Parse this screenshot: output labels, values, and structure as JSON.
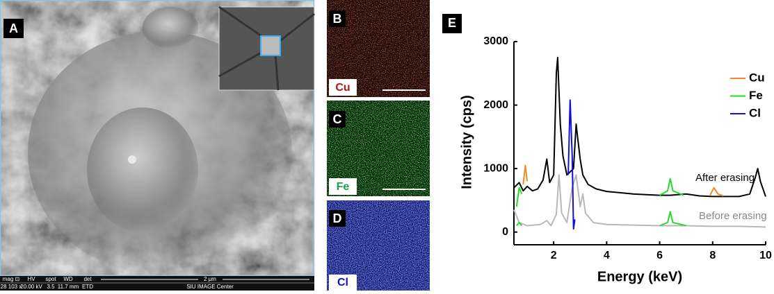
{
  "panels": {
    "A": {
      "label": "A",
      "info_bar": {
        "headers": [
          "mag ⊡",
          "HV",
          "spot",
          "WD",
          "det"
        ],
        "values": [
          "28 103 x",
          "20.00 kV",
          "3.5",
          "11.7 mm",
          "ETD"
        ],
        "scale": "2 μm",
        "center": "SIU IMAGE Center"
      }
    },
    "B": {
      "label": "B",
      "element": "Cu"
    },
    "C": {
      "label": "C",
      "element": "Fe"
    },
    "D": {
      "label": "D",
      "element": "Cl"
    }
  },
  "chart_data": {
    "type": "line",
    "label": "E",
    "xlabel": "Energy (keV)",
    "ylabel": "Intensity (cps)",
    "xlim": [
      0.5,
      10
    ],
    "ylim": [
      -200,
      3000
    ],
    "xticks": [
      2,
      4,
      6,
      8,
      10
    ],
    "yticks": [
      0,
      1000,
      2000,
      3000
    ],
    "curves": [
      {
        "name": "After erasing",
        "color": "#000000",
        "x": [
          0.5,
          0.7,
          0.85,
          1.0,
          1.2,
          1.4,
          1.6,
          1.74,
          1.85,
          2.0,
          2.1,
          2.15,
          2.25,
          2.35,
          2.5,
          2.75,
          2.85,
          2.9,
          3.0,
          3.1,
          3.3,
          3.6,
          4.0,
          4.5,
          5.0,
          5.5,
          6.0,
          6.4,
          7.0,
          7.5,
          8.0,
          8.5,
          9.0,
          9.4,
          9.6,
          9.7,
          9.8,
          10.0
        ],
        "values": [
          700,
          780,
          650,
          720,
          650,
          680,
          820,
          1150,
          780,
          900,
          2500,
          2750,
          1700,
          1200,
          900,
          1000,
          1700,
          1500,
          1150,
          900,
          750,
          680,
          640,
          620,
          600,
          590,
          580,
          580,
          600,
          570,
          560,
          560,
          560,
          600,
          850,
          1000,
          800,
          560
        ]
      },
      {
        "name": "Before erasing",
        "color": "#b8b8b8",
        "x": [
          0.5,
          0.7,
          1.0,
          1.5,
          1.74,
          1.9,
          2.1,
          2.2,
          2.3,
          2.5,
          2.7,
          2.85,
          3.0,
          3.1,
          3.2,
          3.5,
          4.0,
          5.0,
          6.0,
          6.4,
          7.0,
          8.0,
          9.0,
          10.0
        ],
        "values": [
          350,
          150,
          100,
          120,
          180,
          100,
          280,
          900,
          300,
          150,
          700,
          900,
          400,
          600,
          300,
          150,
          120,
          110,
          100,
          100,
          100,
          90,
          90,
          80
        ]
      }
    ],
    "series": [
      {
        "name": "Cu",
        "color": "#f08a24",
        "x": [
          0.85,
          0.93,
          1.0,
          null,
          7.9,
          8.05,
          8.2,
          8.4
        ],
        "values": [
          750,
          1050,
          800,
          null,
          580,
          700,
          600,
          570
        ]
      },
      {
        "name": "Fe",
        "color": "#22dd22",
        "x": [
          0.6,
          0.7,
          0.8,
          null,
          0.6,
          0.7,
          0.8,
          null,
          6.0,
          6.3,
          6.4,
          6.5,
          6.9,
          null,
          6.0,
          6.3,
          6.4,
          6.5,
          7.0
        ],
        "values": [
          400,
          700,
          600,
          null,
          100,
          150,
          100,
          null,
          580,
          650,
          840,
          650,
          580,
          null,
          100,
          150,
          320,
          150,
          100
        ]
      },
      {
        "name": "Cl",
        "color": "#1010dd",
        "x": [
          2.55,
          2.62,
          2.7,
          2.75,
          2.8
        ],
        "values": [
          900,
          2080,
          1200,
          50,
          200
        ]
      }
    ]
  }
}
